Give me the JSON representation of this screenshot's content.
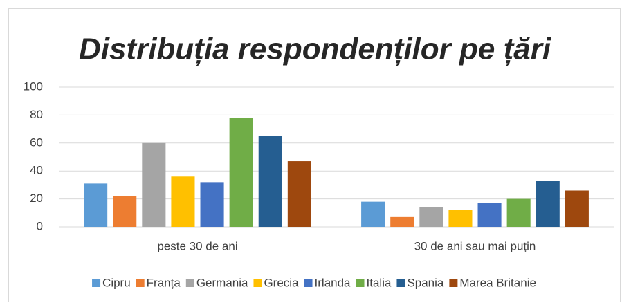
{
  "chart_data": {
    "type": "bar",
    "title": "Distribuția respondenților pe țări",
    "categories": [
      "peste 30 de ani",
      "30 de ani sau mai puțin"
    ],
    "series": [
      {
        "name": "Cipru",
        "color": "#5b9bd5",
        "values": [
          31,
          18
        ]
      },
      {
        "name": "Franța",
        "color": "#ed7d31",
        "values": [
          22,
          7
        ]
      },
      {
        "name": "Germania",
        "color": "#a5a5a5",
        "values": [
          60,
          14
        ]
      },
      {
        "name": "Grecia",
        "color": "#ffc000",
        "values": [
          36,
          12
        ]
      },
      {
        "name": "Irlanda",
        "color": "#4472c4",
        "values": [
          32,
          17
        ]
      },
      {
        "name": "Italia",
        "color": "#70ad47",
        "values": [
          78,
          20
        ]
      },
      {
        "name": "Spania",
        "color": "#255e91",
        "values": [
          65,
          33
        ]
      },
      {
        "name": "Marea Britanie",
        "color": "#9e480e",
        "values": [
          47,
          26
        ]
      }
    ],
    "ylim": [
      0,
      100
    ],
    "yticks": [
      0,
      20,
      40,
      60,
      80,
      100
    ],
    "grid": true,
    "legend": "bottom"
  }
}
